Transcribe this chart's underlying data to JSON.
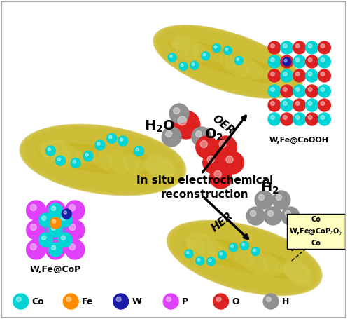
{
  "bg_color": "#ffffff",
  "legend_items": [
    {
      "label": "Co",
      "color": "#00d4d4"
    },
    {
      "label": "Fe",
      "color": "#ff8c00"
    },
    {
      "label": "W",
      "color": "#1a1aaa"
    },
    {
      "label": "P",
      "color": "#e040fb"
    },
    {
      "label": "O",
      "color": "#dd2020"
    },
    {
      "label": "H",
      "color": "#909090"
    }
  ],
  "center_text1": "In situ electrochemical",
  "center_text2": "reconstruction",
  "oer_label": "OER",
  "her_label": "HER",
  "wfe_coooh_label": "W,Fe@CoOOH",
  "wfe_cop_label": "W,Fe@CoP"
}
